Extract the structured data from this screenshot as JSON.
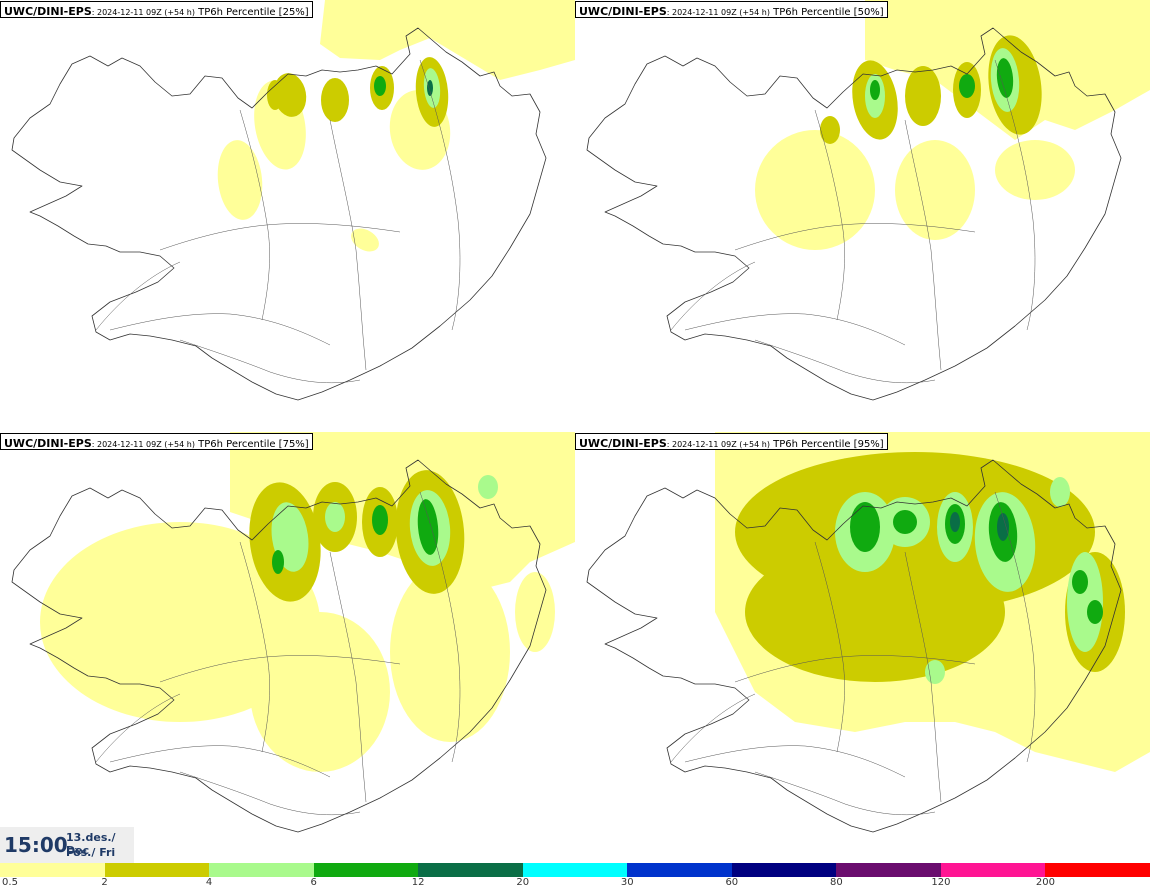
{
  "panels": [
    {
      "model": "UWC/DINI-EPS",
      "run": ": 2024-12-11 09Z (+54 h)",
      "param": " TP6h Percentile [25%]"
    },
    {
      "model": "UWC/DINI-EPS",
      "run": ": 2024-12-11 09Z (+54 h)",
      "param": " TP6h Percentile [50%]"
    },
    {
      "model": "UWC/DINI-EPS",
      "run": ": 2024-12-11 09Z (+54 h)",
      "param": " TP6h Percentile [75%]"
    },
    {
      "model": "UWC/DINI-EPS",
      "run": ": 2024-12-11 09Z (+54 h)",
      "param": " TP6h Percentile [95%]"
    }
  ],
  "valid_time": {
    "time": "15:00",
    "date_line1": "13.des./ Dec",
    "date_line2": "Fös./ Fri"
  },
  "colorbar": {
    "labels": [
      "0.5",
      "2",
      "4",
      "6",
      "12",
      "20",
      "30",
      "60",
      "80",
      "120",
      "200"
    ],
    "colors": [
      "#ffff99",
      "#cccc00",
      "#a9fa8c",
      "#10aa10",
      "#0a6e46",
      "#00ffff",
      "#0033cc",
      "#000080",
      "#6a0c6e",
      "#ff1493",
      "#ff0000"
    ]
  }
}
